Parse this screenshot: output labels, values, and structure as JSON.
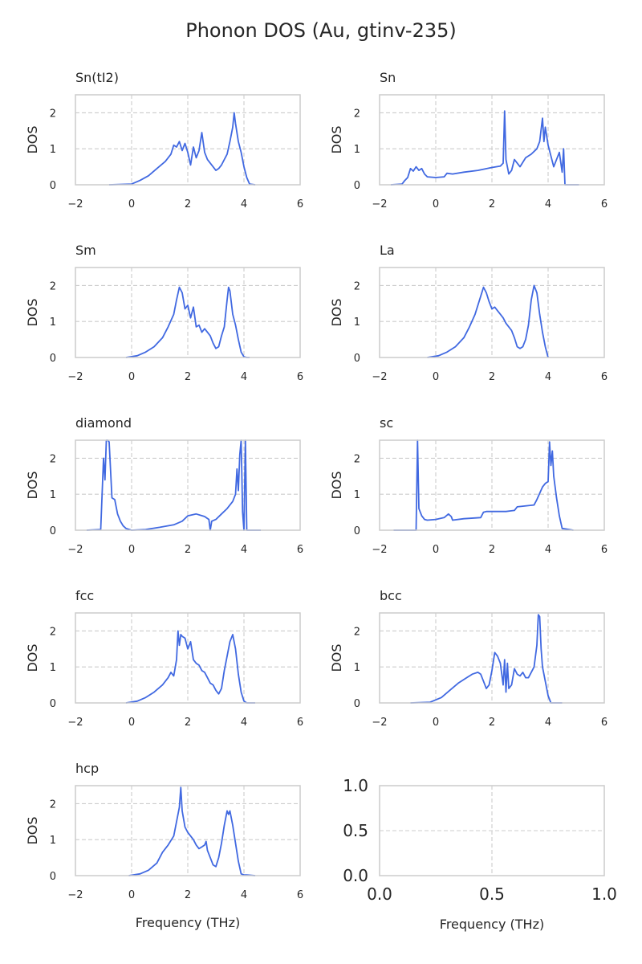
{
  "chart_data": {
    "type": "line",
    "title": "Phonon DOS (Au, gtinv-235)",
    "series_color": "#4169e1",
    "grid": true,
    "panels": [
      {
        "title": "Sn(tI2)",
        "ylabel": "DOS",
        "xlabel": "",
        "xlim": [
          -2,
          6
        ],
        "ylim": [
          0,
          2.5
        ],
        "xticks": [
          -2,
          0,
          2,
          4,
          6
        ],
        "xtick_labels": [
          "−2",
          "0",
          "2",
          "4",
          "6"
        ],
        "yticks": [
          0,
          1,
          2
        ],
        "ytick_labels": [
          "0",
          "1",
          "2"
        ],
        "x": [
          -0.8,
          0.0,
          0.3,
          0.6,
          0.9,
          1.2,
          1.4,
          1.5,
          1.6,
          1.7,
          1.8,
          1.9,
          2.0,
          2.1,
          2.2,
          2.3,
          2.4,
          2.5,
          2.6,
          2.7,
          2.8,
          2.9,
          3.0,
          3.1,
          3.2,
          3.3,
          3.4,
          3.5,
          3.6,
          3.65,
          3.7,
          3.8,
          3.9,
          4.0,
          4.1,
          4.2,
          4.4
        ],
        "y": [
          0.0,
          0.02,
          0.12,
          0.25,
          0.45,
          0.65,
          0.85,
          1.1,
          1.05,
          1.2,
          0.95,
          1.15,
          0.9,
          0.55,
          1.05,
          0.75,
          0.95,
          1.45,
          0.9,
          0.7,
          0.6,
          0.5,
          0.4,
          0.45,
          0.55,
          0.7,
          0.85,
          1.2,
          1.6,
          2.0,
          1.7,
          1.2,
          0.9,
          0.5,
          0.2,
          0.02,
          0.0
        ]
      },
      {
        "title": "Sn",
        "ylabel": "DOS",
        "xlabel": "",
        "xlim": [
          -2,
          6
        ],
        "ylim": [
          0,
          2.5
        ],
        "xticks": [
          -2,
          0,
          2,
          4,
          6
        ],
        "xtick_labels": [
          "−2",
          "0",
          "2",
          "4",
          "6"
        ],
        "yticks": [
          0,
          1,
          2
        ],
        "ytick_labels": [
          "0",
          "1",
          "2"
        ],
        "x": [
          -1.6,
          -1.2,
          -1.1,
          -1.0,
          -0.9,
          -0.8,
          -0.7,
          -0.6,
          -0.5,
          -0.4,
          -0.3,
          0.0,
          0.3,
          0.4,
          0.6,
          1.0,
          1.5,
          2.0,
          2.3,
          2.4,
          2.45,
          2.5,
          2.6,
          2.7,
          2.8,
          3.0,
          3.2,
          3.4,
          3.6,
          3.7,
          3.8,
          3.85,
          3.9,
          4.0,
          4.1,
          4.2,
          4.3,
          4.4,
          4.5,
          4.55,
          4.6,
          5.1
        ],
        "y": [
          0.0,
          0.02,
          0.12,
          0.2,
          0.45,
          0.38,
          0.5,
          0.4,
          0.45,
          0.3,
          0.22,
          0.2,
          0.22,
          0.32,
          0.3,
          0.35,
          0.4,
          0.48,
          0.52,
          0.6,
          2.05,
          0.7,
          0.3,
          0.4,
          0.7,
          0.5,
          0.75,
          0.85,
          1.0,
          1.2,
          1.85,
          1.2,
          1.6,
          1.1,
          0.8,
          0.5,
          0.7,
          0.9,
          0.35,
          1.0,
          0.0,
          0.0
        ]
      },
      {
        "title": "Sm",
        "ylabel": "DOS",
        "xlabel": "",
        "xlim": [
          -2,
          6
        ],
        "ylim": [
          0,
          2.5
        ],
        "xticks": [
          -2,
          0,
          2,
          4,
          6
        ],
        "xtick_labels": [
          "−2",
          "0",
          "2",
          "4",
          "6"
        ],
        "yticks": [
          0,
          1,
          2
        ],
        "ytick_labels": [
          "0",
          "1",
          "2"
        ],
        "x": [
          -0.2,
          0.2,
          0.5,
          0.8,
          1.1,
          1.3,
          1.5,
          1.6,
          1.7,
          1.8,
          1.9,
          2.0,
          2.1,
          2.2,
          2.3,
          2.4,
          2.5,
          2.6,
          2.7,
          2.8,
          2.9,
          3.0,
          3.1,
          3.2,
          3.3,
          3.4,
          3.45,
          3.5,
          3.6,
          3.7,
          3.8,
          3.9,
          4.0,
          4.1,
          4.2
        ],
        "y": [
          0.0,
          0.05,
          0.15,
          0.3,
          0.55,
          0.85,
          1.2,
          1.6,
          1.95,
          1.8,
          1.35,
          1.45,
          1.1,
          1.4,
          0.85,
          0.9,
          0.7,
          0.8,
          0.7,
          0.6,
          0.4,
          0.25,
          0.3,
          0.6,
          0.85,
          1.6,
          1.95,
          1.85,
          1.2,
          0.9,
          0.5,
          0.15,
          0.02,
          0.0,
          0.0
        ]
      },
      {
        "title": "La",
        "ylabel": "DOS",
        "xlabel": "",
        "xlim": [
          -2,
          6
        ],
        "ylim": [
          0,
          2.5
        ],
        "xticks": [
          -2,
          0,
          2,
          4,
          6
        ],
        "xtick_labels": [
          "−2",
          "0",
          "2",
          "4",
          "6"
        ],
        "yticks": [
          0,
          1,
          2
        ],
        "ytick_labels": [
          "0",
          "1",
          "2"
        ],
        "x": [
          -0.3,
          0.1,
          0.4,
          0.7,
          1.0,
          1.2,
          1.4,
          1.6,
          1.7,
          1.8,
          1.9,
          2.0,
          2.1,
          2.2,
          2.3,
          2.4,
          2.5,
          2.6,
          2.7,
          2.8,
          2.9,
          3.0,
          3.1,
          3.2,
          3.3,
          3.4,
          3.5,
          3.6,
          3.7,
          3.8,
          3.9,
          4.0
        ],
        "y": [
          0.0,
          0.05,
          0.15,
          0.3,
          0.55,
          0.85,
          1.2,
          1.7,
          1.95,
          1.8,
          1.55,
          1.35,
          1.4,
          1.3,
          1.2,
          1.1,
          0.95,
          0.85,
          0.75,
          0.55,
          0.3,
          0.25,
          0.3,
          0.5,
          0.9,
          1.6,
          2.0,
          1.8,
          1.2,
          0.7,
          0.3,
          0.0
        ]
      },
      {
        "title": "diamond",
        "ylabel": "DOS",
        "xlabel": "",
        "xlim": [
          -2,
          6
        ],
        "ylim": [
          0,
          2.5
        ],
        "xticks": [
          -2,
          0,
          2,
          4,
          6
        ],
        "xtick_labels": [
          "−2",
          "0",
          "2",
          "4",
          "6"
        ],
        "yticks": [
          0,
          1,
          2
        ],
        "ytick_labels": [
          "0",
          "1",
          "2"
        ],
        "x": [
          -1.6,
          -1.1,
          -1.0,
          -0.95,
          -0.9,
          -0.85,
          -0.8,
          -0.7,
          -0.6,
          -0.5,
          -0.4,
          -0.3,
          -0.2,
          0.0,
          0.5,
          1.0,
          1.5,
          1.8,
          2.0,
          2.3,
          2.6,
          2.75,
          2.8,
          2.85,
          3.0,
          3.2,
          3.4,
          3.6,
          3.7,
          3.75,
          3.8,
          3.85,
          3.9,
          3.95,
          4.0,
          4.05,
          4.1,
          4.6
        ],
        "y": [
          0.0,
          0.02,
          2.0,
          1.4,
          2.5,
          2.5,
          2.45,
          0.9,
          0.85,
          0.45,
          0.25,
          0.12,
          0.05,
          0.0,
          0.02,
          0.08,
          0.15,
          0.25,
          0.4,
          0.45,
          0.38,
          0.3,
          0.0,
          0.25,
          0.3,
          0.45,
          0.6,
          0.8,
          1.0,
          1.7,
          1.1,
          2.1,
          2.5,
          0.5,
          0.0,
          2.5,
          0.0,
          0.0
        ]
      },
      {
        "title": "sc",
        "ylabel": "DOS",
        "xlabel": "",
        "xlim": [
          -2,
          6
        ],
        "ylim": [
          0,
          2.5
        ],
        "xticks": [
          -2,
          0,
          2,
          4,
          6
        ],
        "xtick_labels": [
          "−2",
          "0",
          "2",
          "4",
          "6"
        ],
        "yticks": [
          0,
          1,
          2
        ],
        "ytick_labels": [
          "0",
          "1",
          "2"
        ],
        "x": [
          -1.5,
          -0.7,
          -0.65,
          -0.6,
          -0.5,
          -0.4,
          -0.3,
          0.0,
          0.3,
          0.45,
          0.55,
          0.6,
          1.0,
          1.6,
          1.7,
          1.8,
          2.5,
          2.8,
          2.9,
          3.5,
          3.6,
          3.8,
          3.9,
          4.0,
          4.05,
          4.1,
          4.15,
          4.2,
          4.3,
          4.4,
          4.5,
          4.9
        ],
        "y": [
          0.0,
          0.0,
          2.5,
          0.6,
          0.4,
          0.3,
          0.28,
          0.3,
          0.35,
          0.45,
          0.38,
          0.28,
          0.32,
          0.35,
          0.5,
          0.52,
          0.52,
          0.55,
          0.65,
          0.7,
          0.85,
          1.2,
          1.3,
          1.35,
          2.45,
          1.8,
          2.2,
          1.5,
          0.9,
          0.4,
          0.05,
          0.0
        ]
      },
      {
        "title": "fcc",
        "ylabel": "DOS",
        "xlabel": "",
        "xlim": [
          -2,
          6
        ],
        "ylim": [
          0,
          2.5
        ],
        "xticks": [
          -2,
          0,
          2,
          4,
          6
        ],
        "xtick_labels": [
          "−2",
          "0",
          "2",
          "4",
          "6"
        ],
        "yticks": [
          0,
          1,
          2
        ],
        "ytick_labels": [
          "0",
          "1",
          "2"
        ],
        "x": [
          -0.2,
          0.2,
          0.5,
          0.8,
          1.1,
          1.3,
          1.4,
          1.5,
          1.6,
          1.65,
          1.7,
          1.75,
          1.8,
          1.9,
          2.0,
          2.1,
          2.2,
          2.3,
          2.4,
          2.5,
          2.6,
          2.7,
          2.8,
          2.9,
          3.0,
          3.1,
          3.2,
          3.3,
          3.4,
          3.5,
          3.6,
          3.7,
          3.8,
          3.9,
          4.0,
          4.1,
          4.4
        ],
        "y": [
          0.0,
          0.05,
          0.15,
          0.3,
          0.5,
          0.7,
          0.85,
          0.75,
          1.2,
          2.0,
          1.6,
          1.9,
          1.85,
          1.8,
          1.5,
          1.7,
          1.2,
          1.1,
          1.05,
          0.9,
          0.85,
          0.7,
          0.55,
          0.5,
          0.35,
          0.25,
          0.4,
          0.9,
          1.3,
          1.7,
          1.9,
          1.5,
          0.8,
          0.3,
          0.05,
          0.0,
          0.0
        ]
      },
      {
        "title": "bcc",
        "ylabel": "DOS",
        "xlabel": "",
        "xlim": [
          -2,
          6
        ],
        "ylim": [
          0,
          2.5
        ],
        "xticks": [
          -2,
          0,
          2,
          4,
          6
        ],
        "xtick_labels": [
          "−2",
          "0",
          "2",
          "4",
          "6"
        ],
        "yticks": [
          0,
          1,
          2
        ],
        "ytick_labels": [
          "0",
          "1",
          "2"
        ],
        "x": [
          -0.9,
          -0.2,
          0.2,
          0.5,
          0.8,
          1.1,
          1.3,
          1.5,
          1.6,
          1.7,
          1.8,
          1.9,
          2.0,
          2.1,
          2.2,
          2.3,
          2.4,
          2.45,
          2.5,
          2.55,
          2.6,
          2.7,
          2.8,
          2.9,
          3.0,
          3.1,
          3.2,
          3.3,
          3.4,
          3.5,
          3.6,
          3.65,
          3.7,
          3.75,
          3.8,
          3.9,
          4.0,
          4.1,
          4.5
        ],
        "y": [
          0.0,
          0.02,
          0.15,
          0.35,
          0.55,
          0.7,
          0.8,
          0.85,
          0.8,
          0.6,
          0.4,
          0.5,
          0.9,
          1.4,
          1.3,
          1.1,
          0.5,
          1.2,
          0.3,
          1.1,
          0.4,
          0.5,
          0.95,
          0.8,
          0.75,
          0.85,
          0.7,
          0.7,
          0.85,
          1.0,
          1.6,
          2.45,
          2.4,
          1.5,
          1.0,
          0.6,
          0.2,
          0.0,
          0.0
        ]
      },
      {
        "title": "hcp",
        "ylabel": "DOS",
        "xlabel": "Frequency (THz)",
        "xlim": [
          -2,
          6
        ],
        "ylim": [
          0,
          2.5
        ],
        "xticks": [
          -2,
          0,
          2,
          4,
          6
        ],
        "xtick_labels": [
          "−2",
          "0",
          "2",
          "4",
          "6"
        ],
        "yticks": [
          0,
          1,
          2
        ],
        "ytick_labels": [
          "0",
          "1",
          "2"
        ],
        "x": [
          -0.1,
          0.3,
          0.6,
          0.9,
          1.1,
          1.3,
          1.5,
          1.6,
          1.7,
          1.75,
          1.8,
          1.9,
          2.0,
          2.1,
          2.2,
          2.3,
          2.4,
          2.5,
          2.6,
          2.65,
          2.7,
          2.8,
          2.9,
          3.0,
          3.1,
          3.2,
          3.3,
          3.4,
          3.45,
          3.5,
          3.6,
          3.7,
          3.8,
          3.9,
          4.0,
          4.1,
          4.4
        ],
        "y": [
          0.0,
          0.05,
          0.15,
          0.35,
          0.65,
          0.85,
          1.1,
          1.5,
          1.9,
          2.45,
          1.8,
          1.35,
          1.2,
          1.1,
          1.0,
          0.85,
          0.75,
          0.8,
          0.85,
          0.95,
          0.7,
          0.5,
          0.3,
          0.25,
          0.5,
          0.9,
          1.4,
          1.8,
          1.7,
          1.8,
          1.4,
          0.9,
          0.4,
          0.05,
          0.02,
          0.02,
          0.0
        ]
      },
      {
        "title": "",
        "ylabel": "",
        "xlabel": "Frequency (THz)",
        "xlim": [
          0,
          1
        ],
        "ylim": [
          0,
          1
        ],
        "xticks": [
          0,
          0.5,
          1
        ],
        "xtick_labels": [
          "0.0",
          "0.5",
          "1.0"
        ],
        "yticks": [
          0,
          0.5,
          1
        ],
        "ytick_labels": [
          "0.0",
          "0.5",
          "1.0"
        ],
        "x": [],
        "y": []
      }
    ]
  }
}
